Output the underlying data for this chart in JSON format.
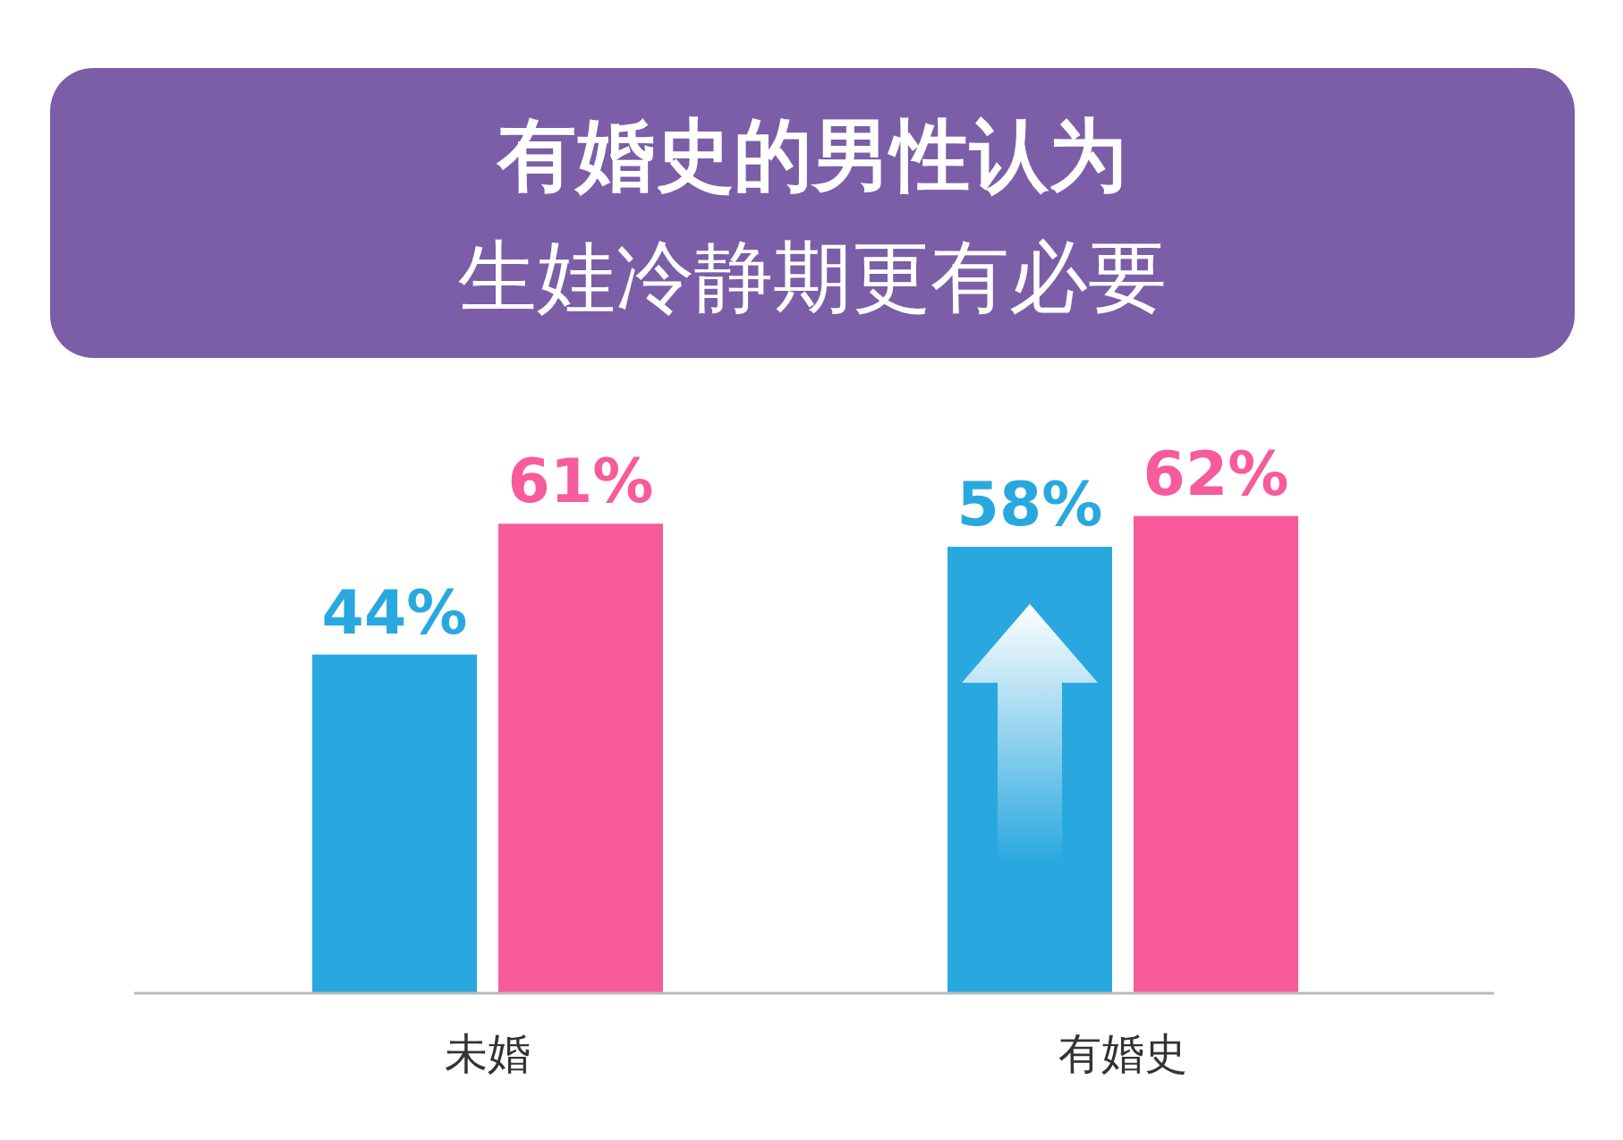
{
  "chart_data": {
    "type": "bar",
    "title": "有婚史的男性认为",
    "subtitle": "生娃冷静期更有必要",
    "categories": [
      "未婚",
      "有婚史"
    ],
    "series": [
      {
        "color": "#29a8e0",
        "values": [
          44,
          58
        ],
        "value_labels": [
          "44%",
          "58%"
        ]
      },
      {
        "color": "#f75b9c",
        "values": [
          61,
          62
        ],
        "value_labels": [
          "61%",
          "62%"
        ]
      }
    ]
  }
}
